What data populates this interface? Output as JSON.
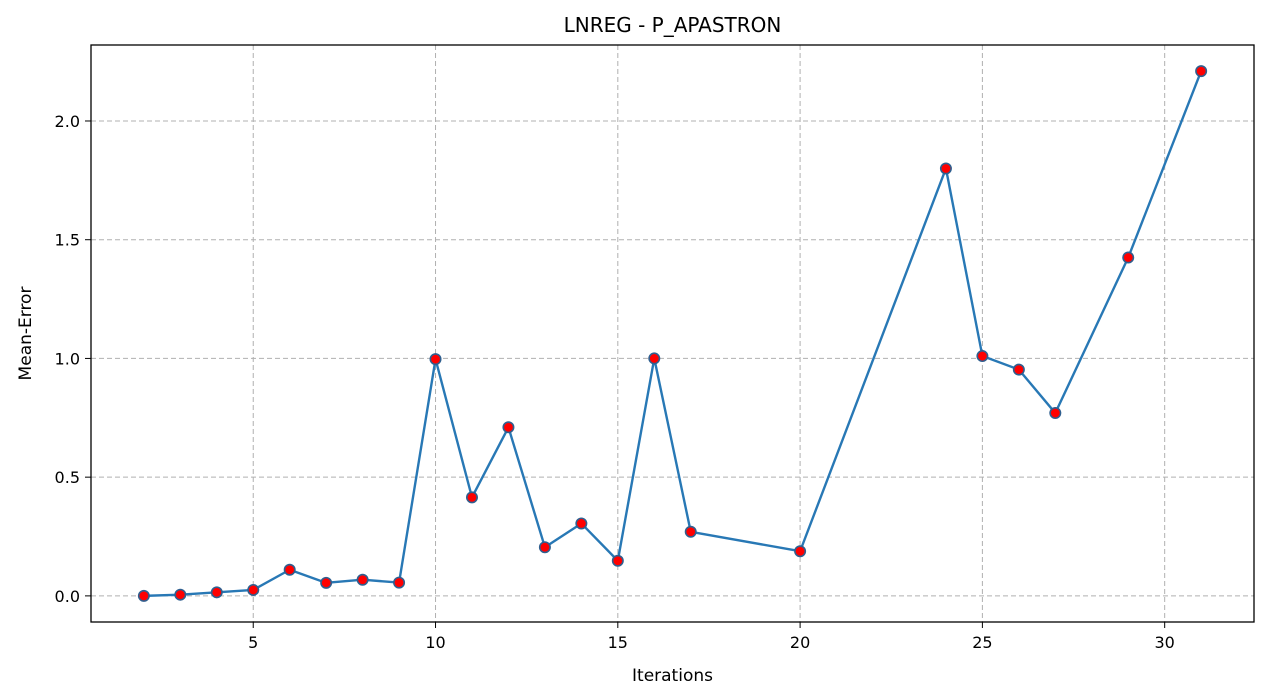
{
  "chart_data": {
    "type": "line",
    "title": "LNREG - P_APASTRON",
    "xlabel": "Iterations",
    "ylabel": "Mean-Error",
    "xlim": [
      0.55,
      32.45
    ],
    "ylim": [
      -0.11,
      2.32
    ],
    "xticks": [
      5,
      10,
      15,
      20,
      25,
      30
    ],
    "yticks": [
      0.0,
      0.5,
      1.0,
      1.5,
      2.0
    ],
    "xtick_labels": [
      "5",
      "10",
      "15",
      "20",
      "25",
      "30"
    ],
    "ytick_labels": [
      "0.0",
      "0.5",
      "1.0",
      "1.5",
      "2.0"
    ],
    "grid": true,
    "series": [
      {
        "line_color": "#2878b5",
        "marker_color": "#ff0000",
        "marker_edge_color": "#2f5f8f",
        "x": [
          2,
          3,
          4,
          5,
          6,
          7,
          8,
          9,
          10,
          11,
          12,
          13,
          14,
          15,
          16,
          17,
          20,
          24,
          25,
          26,
          27,
          29,
          31
        ],
        "y": [
          0.0,
          0.005,
          0.015,
          0.025,
          0.11,
          0.055,
          0.068,
          0.056,
          0.997,
          0.415,
          0.71,
          0.205,
          0.305,
          0.148,
          1.0,
          0.27,
          0.188,
          1.8,
          1.01,
          0.953,
          0.77,
          1.425,
          2.21
        ]
      }
    ]
  }
}
